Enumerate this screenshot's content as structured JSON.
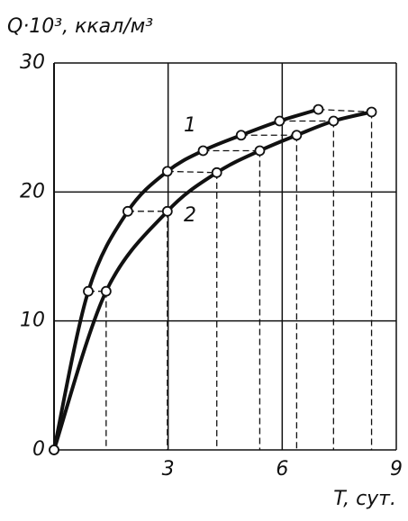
{
  "chart_data": {
    "type": "line",
    "ylabel": "Q·10³, ккал/м³",
    "xlabel": "T, сут.",
    "xlim": [
      0,
      9
    ],
    "ylim": [
      0,
      30
    ],
    "xticks": [
      3,
      6,
      9
    ],
    "yticks": [
      0,
      10,
      20,
      30
    ],
    "grid": true,
    "series": [
      {
        "name": "1",
        "color": "#111111",
        "x": [
          0,
          0.9,
          1.94,
          2.98,
          3.92,
          4.92,
          5.93,
          6.95
        ],
        "values": [
          0,
          12.3,
          18.5,
          21.6,
          23.2,
          24.4,
          25.5,
          26.4
        ]
      },
      {
        "name": "2",
        "color": "#111111",
        "x": [
          0,
          1.37,
          2.98,
          4.28,
          5.41,
          6.38,
          7.35,
          8.35
        ],
        "values": [
          0,
          12.3,
          18.5,
          21.5,
          23.2,
          24.4,
          25.5,
          26.2
        ]
      }
    ]
  }
}
